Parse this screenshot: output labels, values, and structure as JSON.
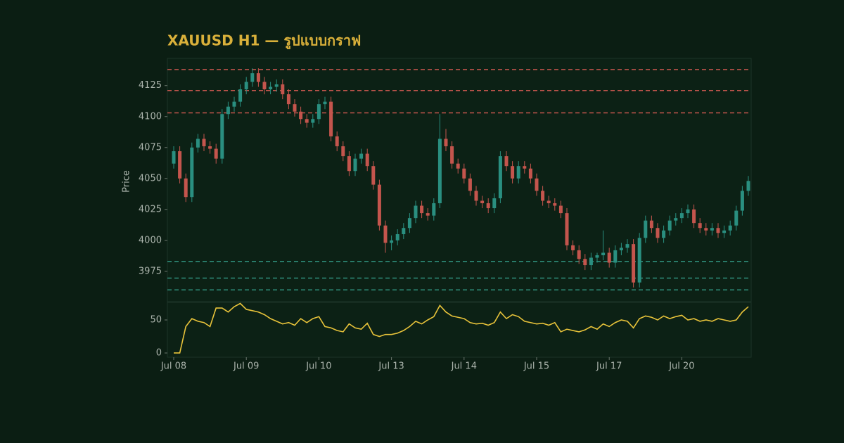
{
  "chart_data": {
    "type": "candlestick",
    "title": "XAUUSD H1 — รูปแบบกราฟ",
    "y_label": "Price",
    "categories": [
      "Jul 08",
      null,
      null,
      null,
      null,
      null,
      null,
      null,
      null,
      null,
      null,
      null,
      "Jul 09",
      null,
      null,
      null,
      null,
      null,
      null,
      null,
      null,
      null,
      null,
      null,
      "Jul 10",
      null,
      null,
      null,
      null,
      null,
      null,
      null,
      null,
      null,
      null,
      null,
      "Jul 13",
      null,
      null,
      null,
      null,
      null,
      null,
      null,
      null,
      null,
      null,
      null,
      "Jul 14",
      null,
      null,
      null,
      null,
      null,
      null,
      null,
      null,
      null,
      null,
      null,
      "Jul 15",
      null,
      null,
      null,
      null,
      null,
      null,
      null,
      null,
      null,
      null,
      null,
      "Jul 17",
      null,
      null,
      null,
      null,
      null,
      null,
      null,
      null,
      null,
      null,
      null,
      "Jul 20",
      null,
      null,
      null,
      null,
      null,
      null,
      null,
      null,
      null,
      null,
      null
    ],
    "open": [
      4062,
      4072,
      4050,
      4035,
      4075,
      4082,
      4076,
      4074,
      4066,
      4102,
      4108,
      4112,
      4122,
      4128,
      4135,
      4128,
      4122,
      4124,
      4126,
      4118,
      4110,
      4104,
      4098,
      4095,
      4098,
      4110,
      4112,
      4084,
      4076,
      4068,
      4056,
      4066,
      4070,
      4060,
      4045,
      4012,
      3998,
      4000,
      4005,
      4010,
      4018,
      4028,
      4022,
      4020,
      4030,
      4082,
      4076,
      4062,
      4058,
      4050,
      4040,
      4032,
      4030,
      4026,
      4034,
      4068,
      4060,
      4050,
      4060,
      4058,
      4050,
      4040,
      4032,
      4030,
      4028,
      4022,
      3996,
      3992,
      3985,
      3980,
      3986,
      3988,
      3990,
      3982,
      3992,
      3994,
      3997,
      3966,
      4002,
      4016,
      4010,
      4002,
      4008,
      4016,
      4018,
      4022,
      4025,
      4014,
      4010,
      4008,
      4010,
      4006,
      4008,
      4012,
      4024,
      4040
    ],
    "high": [
      4076,
      4076,
      4054,
      4079,
      4086,
      4086,
      4080,
      4078,
      4106,
      4112,
      4116,
      4126,
      4132,
      4139,
      4139,
      4132,
      4128,
      4130,
      4130,
      4122,
      4114,
      4108,
      4102,
      4102,
      4114,
      4116,
      4116,
      4088,
      4080,
      4072,
      4070,
      4074,
      4074,
      4064,
      4049,
      4016,
      4004,
      4009,
      4014,
      4022,
      4032,
      4032,
      4026,
      4034,
      4102,
      4090,
      4080,
      4066,
      4062,
      4054,
      4044,
      4036,
      4034,
      4038,
      4072,
      4072,
      4064,
      4064,
      4064,
      4062,
      4054,
      4044,
      4036,
      4034,
      4032,
      4026,
      4000,
      3996,
      3989,
      3990,
      3990,
      4008,
      3994,
      3996,
      3998,
      4001,
      4001,
      4006,
      4020,
      4020,
      4014,
      4012,
      4020,
      4022,
      4026,
      4029,
      4029,
      4018,
      4014,
      4014,
      4014,
      4012,
      4016,
      4028,
      4044,
      4052
    ],
    "low": [
      4058,
      4046,
      4031,
      4031,
      4071,
      4072,
      4070,
      4062,
      4062,
      4098,
      4104,
      4108,
      4118,
      4124,
      4124,
      4118,
      4118,
      4120,
      4114,
      4106,
      4100,
      4094,
      4091,
      4091,
      4094,
      4106,
      4080,
      4072,
      4064,
      4052,
      4052,
      4062,
      4056,
      4041,
      4008,
      3990,
      3992,
      3996,
      4001,
      4006,
      4014,
      4018,
      4016,
      4016,
      4026,
      4072,
      4058,
      4054,
      4046,
      4036,
      4028,
      4026,
      4022,
      4022,
      4030,
      4056,
      4046,
      4046,
      4054,
      4046,
      4036,
      4028,
      4026,
      4024,
      4018,
      3992,
      3988,
      3981,
      3976,
      3976,
      3982,
      3984,
      3978,
      3978,
      3988,
      3990,
      3962,
      3962,
      3998,
      4006,
      3998,
      3998,
      4004,
      4012,
      4014,
      4018,
      4010,
      4006,
      4004,
      4004,
      4002,
      4002,
      4004,
      4008,
      4020,
      4036
    ],
    "close": [
      4072,
      4050,
      4035,
      4075,
      4082,
      4076,
      4074,
      4066,
      4102,
      4108,
      4112,
      4122,
      4128,
      4135,
      4128,
      4122,
      4124,
      4126,
      4118,
      4110,
      4104,
      4098,
      4095,
      4098,
      4110,
      4112,
      4084,
      4076,
      4068,
      4056,
      4066,
      4070,
      4060,
      4045,
      4012,
      3998,
      4000,
      4005,
      4010,
      4018,
      4028,
      4022,
      4020,
      4030,
      4082,
      4076,
      4062,
      4058,
      4050,
      4040,
      4032,
      4030,
      4026,
      4034,
      4068,
      4060,
      4050,
      4060,
      4058,
      4050,
      4040,
      4032,
      4030,
      4028,
      4022,
      3996,
      3992,
      3985,
      3980,
      3986,
      3988,
      3990,
      3982,
      3992,
      3994,
      3997,
      3966,
      4002,
      4016,
      4010,
      4002,
      4008,
      4016,
      4018,
      4022,
      4025,
      4014,
      4010,
      4008,
      4010,
      4006,
      4008,
      4012,
      4024,
      4040,
      4048
    ],
    "up_color": "#2a8f80",
    "down_color": "#c4554d",
    "ylim": [
      3950.5,
      4147
    ],
    "yticks": [
      3975,
      4000,
      4025,
      4050,
      4075,
      4100,
      4125
    ],
    "resistance_levels": [
      4138,
      4121,
      4103
    ],
    "resistance_color": "#c4554d",
    "support_levels": [
      3983,
      3969.5,
      3960
    ],
    "support_color": "#2f8f7c",
    "indicator": {
      "type": "line",
      "color": "#e8c33a",
      "values": [
        0,
        0,
        40,
        52,
        48,
        46,
        40,
        68,
        68,
        62,
        70,
        75,
        66,
        64,
        62,
        58,
        52,
        48,
        44,
        46,
        42,
        52,
        46,
        52,
        55,
        40,
        38,
        34,
        32,
        44,
        38,
        36,
        45,
        28,
        25,
        28,
        28,
        30,
        34,
        40,
        48,
        44,
        50,
        55,
        72,
        62,
        56,
        54,
        52,
        46,
        44,
        45,
        42,
        46,
        62,
        52,
        58,
        55,
        48,
        46,
        44,
        45,
        42,
        46,
        32,
        36,
        34,
        32,
        35,
        40,
        36,
        44,
        40,
        46,
        50,
        48,
        38,
        52,
        56,
        54,
        50,
        56,
        52,
        55,
        57,
        50,
        52,
        48,
        50,
        48,
        52,
        50,
        48,
        50,
        62,
        70
      ],
      "ylim": [
        -6.4,
        76.6
      ],
      "yticks": [
        0,
        50
      ]
    }
  }
}
